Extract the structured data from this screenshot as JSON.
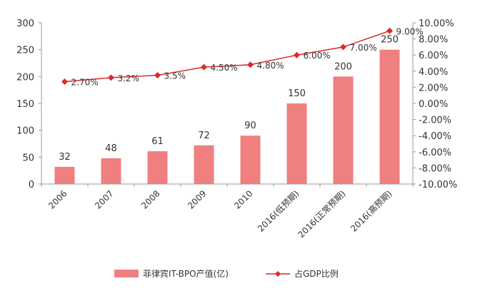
{
  "chart_data": {
    "type": "bar+line",
    "categories": [
      "2006",
      "2007",
      "2008",
      "2009",
      "2010",
      "2016(低预期)",
      "2016(正常预期)",
      "2016(高预期)"
    ],
    "series": [
      {
        "name": "菲律宾IT-BPO产值(亿)",
        "kind": "bar",
        "axis": "left",
        "values": [
          32,
          48,
          61,
          72,
          90,
          150,
          200,
          250
        ],
        "labels": [
          "32",
          "48",
          "61",
          "72",
          "90",
          "150",
          "200",
          "250"
        ],
        "color": "#f08080"
      },
      {
        "name": "占GDP比例",
        "kind": "line",
        "axis": "right",
        "values": [
          2.7,
          3.2,
          3.5,
          4.5,
          4.8,
          6.0,
          7.0,
          9.0
        ],
        "labels": [
          "2.70%",
          "3.2%",
          "3.5%",
          "4.50%",
          "4.80%",
          "6.00%",
          "7.00%",
          "9.00%"
        ],
        "color": "#d92a2a"
      }
    ],
    "y_left": {
      "min": 0,
      "max": 300,
      "ticks": [
        0,
        50,
        100,
        150,
        200,
        250,
        300
      ],
      "tick_labels": [
        "0",
        "50",
        "100",
        "150",
        "200",
        "250",
        "300"
      ]
    },
    "y_right": {
      "min": -10,
      "max": 10,
      "ticks": [
        -10,
        -8,
        -6,
        -4,
        -2,
        0,
        2,
        4,
        6,
        8,
        10
      ],
      "tick_labels": [
        "-10.00%",
        "-8.00%",
        "-6.00%",
        "-4.00%",
        "-2.00%",
        "0.00%",
        "2.00%",
        "4.00%",
        "6.00%",
        "8.00%",
        "10.00%"
      ]
    },
    "legend_position": "bottom",
    "grid": false,
    "title": "",
    "xlabel": "",
    "ylabel": ""
  }
}
